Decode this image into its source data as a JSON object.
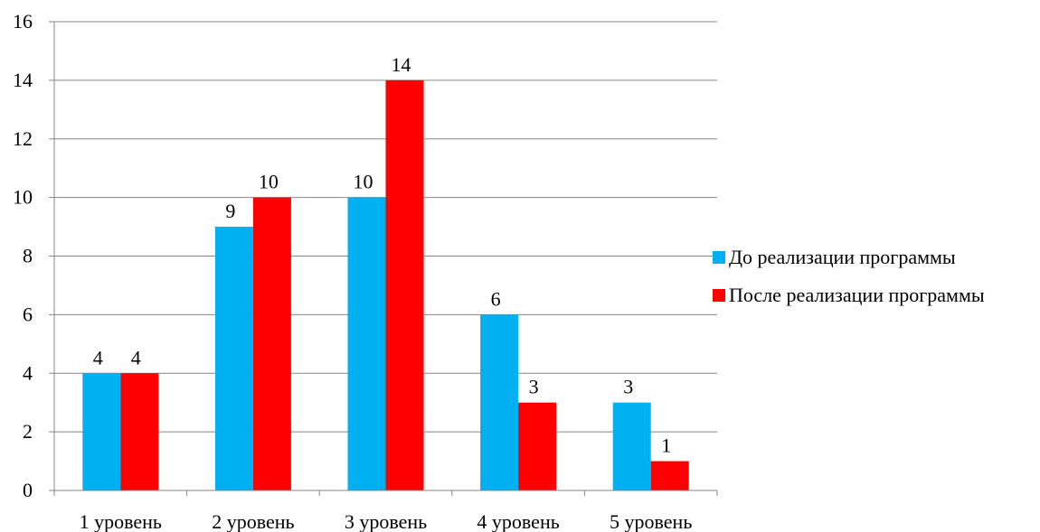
{
  "chart_data": {
    "type": "bar",
    "categories": [
      "1 уровень",
      "2 уровень",
      "3 уровень",
      "4 уровень",
      "5 уровень"
    ],
    "series": [
      {
        "name": "До реализации программы",
        "values": [
          4,
          9,
          10,
          6,
          3
        ],
        "color": "#00B0F0"
      },
      {
        "name": "После реализации программы",
        "values": [
          4,
          10,
          14,
          3,
          1
        ],
        "color": "#FF0000"
      }
    ],
    "ylim": [
      0,
      16
    ],
    "yticks": [
      "0",
      "2",
      "4",
      "6",
      "8",
      "10",
      "12",
      "14",
      "16"
    ],
    "grid": true,
    "legend_position": "right",
    "data_labels": true
  }
}
